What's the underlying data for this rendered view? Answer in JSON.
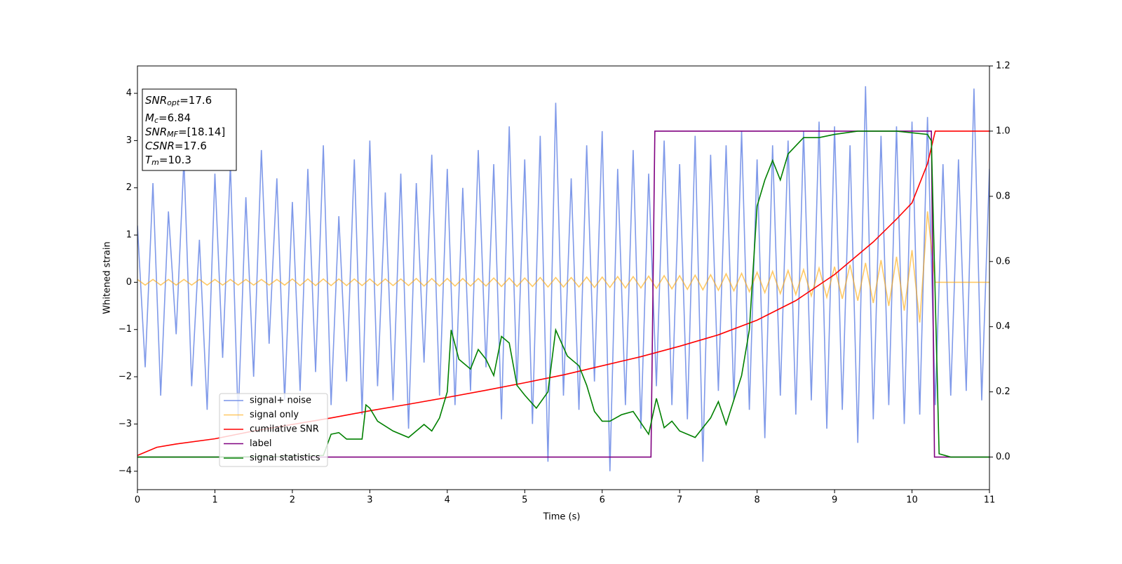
{
  "chart_data": {
    "type": "line",
    "xlabel": "Time (s)",
    "ylabel": "Whitened strain",
    "xlim": [
      0,
      11
    ],
    "ylim": [
      -4.39,
      4.58
    ],
    "y2lim": [
      -0.1,
      1.2
    ],
    "xticks": [
      0,
      1,
      2,
      3,
      4,
      5,
      6,
      7,
      8,
      9,
      10,
      11
    ],
    "yticks": [
      {
        "value": -4,
        "label": "−4"
      },
      {
        "value": -3,
        "label": "−3"
      },
      {
        "value": -2,
        "label": "−2"
      },
      {
        "value": -1,
        "label": "−1"
      },
      0,
      1,
      2,
      3,
      4
    ],
    "y2ticks": [
      {
        "value": 0,
        "label": "0.0"
      },
      0.2,
      0.4,
      0.6,
      0.8,
      {
        "value": 1,
        "label": "1.0"
      },
      1.2
    ],
    "legend_loc": "lower left",
    "annotation_lines": [
      {
        "symbol": "SNR",
        "subscript": "opt",
        "text": "=17.6"
      },
      {
        "symbol": "M",
        "subscript": "c",
        "text": "=6.84"
      },
      {
        "symbol": "SNR",
        "subscript": "MF",
        "text": "=[18.14]"
      },
      {
        "symbol": "CSNR",
        "text": "=17.6"
      },
      {
        "symbol": "T",
        "subscript": "m",
        "text": "=10.3"
      }
    ],
    "x": [
      0,
      0.1,
      0.2,
      0.3,
      0.4,
      0.5,
      0.6,
      0.7,
      0.8,
      0.9,
      1,
      1.1,
      1.2,
      1.3,
      1.4,
      1.5,
      1.6,
      1.7,
      1.8,
      1.9,
      2,
      2.1,
      2.2,
      2.3,
      2.4,
      2.5,
      2.6,
      2.7,
      2.8,
      2.9,
      3,
      3.1,
      3.2,
      3.3,
      3.4,
      3.5,
      3.6,
      3.7,
      3.8,
      3.9,
      4,
      4.1,
      4.2,
      4.3,
      4.4,
      4.5,
      4.6,
      4.7,
      4.8,
      4.9,
      5,
      5.1,
      5.2,
      5.3,
      5.4,
      5.5,
      5.6,
      5.7,
      5.8,
      5.9,
      6,
      6.1,
      6.2,
      6.3,
      6.4,
      6.5,
      6.6,
      6.7,
      6.8,
      6.9,
      7,
      7.1,
      7.2,
      7.3,
      7.4,
      7.5,
      7.6,
      7.7,
      7.8,
      7.9,
      8,
      8.1,
      8.2,
      8.3,
      8.4,
      8.5,
      8.6,
      8.7,
      8.8,
      8.9,
      9,
      9.1,
      9.2,
      9.3,
      9.4,
      9.5,
      9.6,
      9.7,
      9.8,
      9.9,
      10,
      10.1,
      10.2,
      10.3,
      10.4,
      10.5,
      10.6,
      10.7,
      10.8,
      10.9,
      11
    ],
    "series": [
      {
        "name": "signal+ noise",
        "color": "#7893e8",
        "values": [
          1.2,
          -1.8,
          2.1,
          -2.4,
          1.5,
          -1.1,
          2.6,
          -2.2,
          0.9,
          -2.7,
          2.3,
          -1.6,
          2.5,
          -2.9,
          1.8,
          -2.0,
          2.8,
          -1.3,
          2.2,
          -2.5,
          1.7,
          -2.3,
          2.4,
          -1.9,
          2.9,
          -2.6,
          1.4,
          -2.1,
          2.6,
          -2.8,
          3.0,
          -2.2,
          1.9,
          -2.5,
          2.3,
          -3.1,
          2.1,
          -1.7,
          2.7,
          -2.4,
          2.4,
          -2.6,
          2.0,
          -2.3,
          2.8,
          -1.8,
          2.5,
          -2.9,
          3.3,
          -2.2,
          2.6,
          -3.0,
          3.1,
          -3.8,
          3.8,
          -2.4,
          2.2,
          -2.7,
          2.9,
          -2.1,
          3.2,
          -4.0,
          2.4,
          -2.6,
          2.8,
          -3.1,
          2.3,
          -2.2,
          3.0,
          -2.6,
          2.5,
          -2.9,
          3.1,
          -3.8,
          2.7,
          -2.3,
          2.9,
          -2.5,
          3.2,
          -2.7,
          2.6,
          -3.3,
          2.9,
          -2.4,
          3.0,
          -2.8,
          3.2,
          -2.5,
          3.4,
          -3.1,
          3.3,
          -2.7,
          2.9,
          -3.4,
          4.15,
          -2.9,
          3.1,
          -2.6,
          3.3,
          -3.0,
          3.4,
          -2.8,
          3.5,
          -2.6,
          2.5,
          -2.4,
          2.6,
          -2.3,
          4.1,
          -2.5,
          2.4
        ]
      },
      {
        "name": "signal only",
        "color": "#ffa500",
        "values": [
          0.06,
          -0.06,
          0.06,
          -0.06,
          0.06,
          -0.06,
          0.06,
          -0.06,
          0.06,
          -0.06,
          0.06,
          -0.06,
          0.06,
          -0.06,
          0.06,
          -0.06,
          0.06,
          -0.06,
          0.06,
          -0.06,
          0.07,
          -0.07,
          0.07,
          -0.07,
          0.07,
          -0.07,
          0.07,
          -0.07,
          0.07,
          -0.07,
          0.07,
          -0.07,
          0.07,
          -0.07,
          0.07,
          -0.07,
          0.08,
          -0.08,
          0.08,
          -0.08,
          0.08,
          -0.08,
          0.08,
          -0.08,
          0.08,
          -0.08,
          0.09,
          -0.09,
          0.09,
          -0.09,
          0.09,
          -0.09,
          0.1,
          -0.1,
          0.1,
          -0.1,
          0.1,
          -0.1,
          0.11,
          -0.11,
          0.11,
          -0.11,
          0.12,
          -0.12,
          0.12,
          -0.12,
          0.13,
          -0.13,
          0.14,
          -0.14,
          0.14,
          -0.15,
          0.15,
          -0.16,
          0.16,
          -0.17,
          0.18,
          -0.18,
          0.19,
          -0.2,
          0.21,
          -0.22,
          0.23,
          -0.24,
          0.25,
          -0.26,
          0.27,
          -0.29,
          0.3,
          -0.32,
          0.33,
          -0.35,
          0.37,
          -0.39,
          0.41,
          -0.44,
          0.47,
          -0.5,
          0.54,
          -0.6,
          0.68,
          -0.85,
          1.5,
          0,
          0,
          0,
          0,
          0,
          0,
          0,
          0
        ]
      },
      {
        "name": "cumilative SNR",
        "color": "#ff0000",
        "axis": "y2",
        "x": [
          0,
          0.25,
          0.5,
          1,
          1.5,
          2,
          2.5,
          3,
          3.5,
          4,
          4.5,
          5,
          5.5,
          6,
          6.5,
          7,
          7.5,
          8,
          8.5,
          9,
          9.5,
          9.8,
          10,
          10.2,
          10.3,
          11
        ],
        "values": [
          0.005,
          0.03,
          0.04,
          0.056,
          0.08,
          0.1,
          0.12,
          0.142,
          0.162,
          0.183,
          0.205,
          0.228,
          0.252,
          0.28,
          0.308,
          0.34,
          0.375,
          0.42,
          0.48,
          0.56,
          0.66,
          0.73,
          0.78,
          0.9,
          1,
          1
        ]
      },
      {
        "name": "label",
        "color": "#800080",
        "axis": "y2",
        "x": [
          0,
          6.63,
          6.68,
          10.25,
          10.29,
          11
        ],
        "values": [
          0,
          0,
          1,
          1,
          0,
          0
        ]
      },
      {
        "name": "signal statistics",
        "color": "#008000",
        "axis": "y2",
        "x": [
          0,
          1,
          2,
          2.4,
          2.5,
          2.6,
          2.7,
          2.9,
          2.95,
          3,
          3.1,
          3.3,
          3.5,
          3.6,
          3.7,
          3.8,
          3.9,
          4,
          4.05,
          4.15,
          4.3,
          4.4,
          4.5,
          4.6,
          4.7,
          4.8,
          4.9,
          5,
          5.15,
          5.3,
          5.4,
          5.55,
          5.7,
          5.8,
          5.9,
          6,
          6.1,
          6.25,
          6.4,
          6.6,
          6.7,
          6.8,
          6.9,
          7,
          7.2,
          7.4,
          7.5,
          7.6,
          7.8,
          7.9,
          8,
          8.1,
          8.2,
          8.3,
          8.4,
          8.6,
          8.8,
          9,
          9.3,
          9.8,
          10.2,
          10.25,
          10.35,
          10.5,
          11
        ],
        "values": [
          0,
          0,
          0.002,
          0.005,
          0.07,
          0.075,
          0.055,
          0.055,
          0.16,
          0.15,
          0.11,
          0.08,
          0.06,
          0.08,
          0.1,
          0.08,
          0.12,
          0.2,
          0.39,
          0.3,
          0.27,
          0.33,
          0.3,
          0.25,
          0.37,
          0.35,
          0.22,
          0.19,
          0.15,
          0.2,
          0.39,
          0.31,
          0.28,
          0.22,
          0.14,
          0.11,
          0.11,
          0.13,
          0.14,
          0.07,
          0.18,
          0.09,
          0.11,
          0.08,
          0.06,
          0.12,
          0.17,
          0.1,
          0.25,
          0.39,
          0.77,
          0.85,
          0.91,
          0.85,
          0.93,
          0.98,
          0.98,
          0.99,
          1,
          1,
          0.99,
          0.97,
          0.01,
          0,
          0
        ]
      }
    ]
  }
}
